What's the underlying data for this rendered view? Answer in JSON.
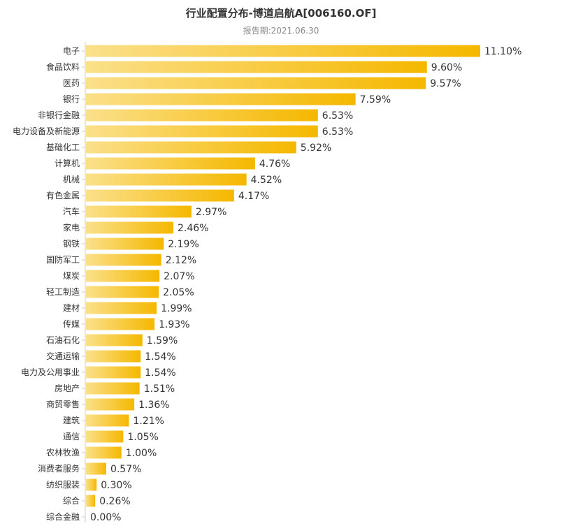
{
  "chart_data": {
    "type": "bar",
    "orientation": "horizontal",
    "title": "行业配置分布-博道启航A[006160.OF]",
    "subtitle": "报告期:2021.06.30",
    "value_suffix": "%",
    "categories": [
      "电子",
      "食品饮料",
      "医药",
      "银行",
      "非银行金融",
      "电力设备及新能源",
      "基础化工",
      "计算机",
      "机械",
      "有色金属",
      "汽车",
      "家电",
      "钢铁",
      "国防军工",
      "煤炭",
      "轻工制造",
      "建材",
      "传媒",
      "石油石化",
      "交通运输",
      "电力及公用事业",
      "房地产",
      "商贸零售",
      "建筑",
      "通信",
      "农林牧渔",
      "消费者服务",
      "纺织服装",
      "综合",
      "综合金融"
    ],
    "values": [
      11.1,
      9.6,
      9.57,
      7.59,
      6.53,
      6.53,
      5.92,
      4.76,
      4.52,
      4.17,
      2.97,
      2.46,
      2.19,
      2.12,
      2.07,
      2.05,
      1.99,
      1.93,
      1.59,
      1.54,
      1.54,
      1.51,
      1.36,
      1.21,
      1.05,
      1.0,
      0.57,
      0.3,
      0.26,
      0.0
    ],
    "value_labels": [
      "11.10%",
      "9.60%",
      "9.57%",
      "7.59%",
      "6.53%",
      "6.53%",
      "5.92%",
      "4.76%",
      "4.52%",
      "4.17%",
      "2.97%",
      "2.46%",
      "2.19%",
      "2.12%",
      "2.07%",
      "2.05%",
      "1.99%",
      "1.93%",
      "1.59%",
      "1.54%",
      "1.54%",
      "1.51%",
      "1.36%",
      "1.21%",
      "1.05%",
      "1.00%",
      "0.57%",
      "0.30%",
      "0.26%",
      "0.00%"
    ],
    "xlim": [
      0,
      11.1
    ],
    "grid": false,
    "legend": "none",
    "colors": {
      "bar_start": "#FBE08A",
      "bar_end": "#F5B800",
      "axis": "#CCCCCC"
    }
  }
}
